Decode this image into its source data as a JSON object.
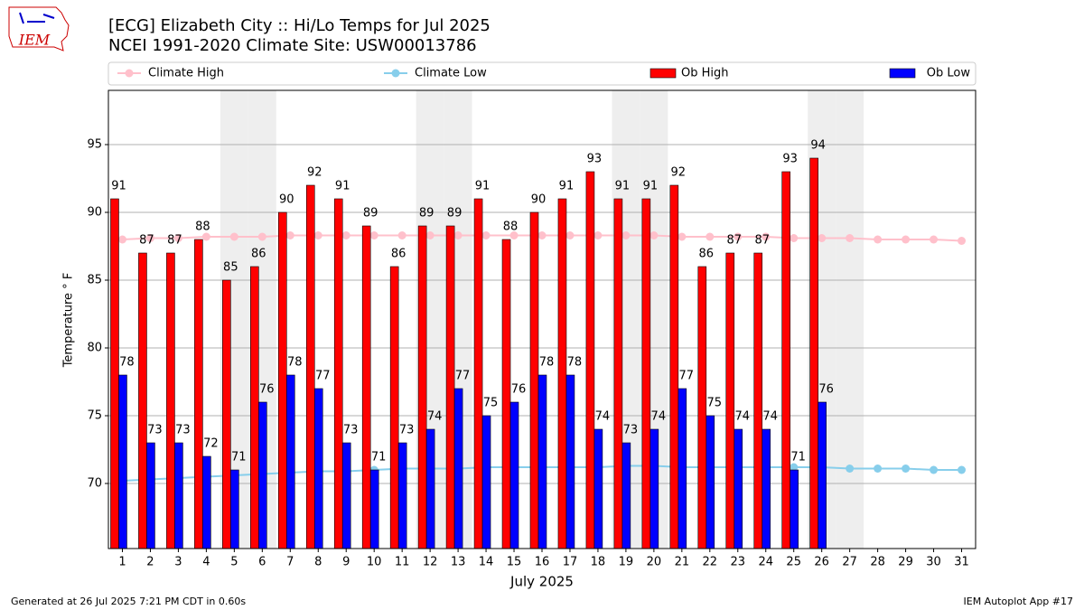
{
  "chart_data": {
    "type": "bar",
    "title": "[ECG] Elizabeth City :: Hi/Lo Temps for Jul 2025",
    "subtitle": "NCEI 1991-2020 Climate Site: USW00013786",
    "x_label": "July 2025",
    "y_label": "Temperature ° F",
    "footer_left": "Generated at 26 Jul 2025 7:21 PM CDT in 0.60s",
    "footer_right": "IEM Autoplot App #17",
    "logo_text": "IEM",
    "categories": [
      "1",
      "2",
      "3",
      "4",
      "5",
      "6",
      "7",
      "8",
      "9",
      "10",
      "11",
      "12",
      "13",
      "14",
      "15",
      "16",
      "17",
      "18",
      "19",
      "20",
      "21",
      "22",
      "23",
      "24",
      "25",
      "26",
      "27",
      "28",
      "29",
      "30",
      "31"
    ],
    "highlight": [
      "5",
      "6",
      "12",
      "13",
      "19",
      "20",
      "26",
      "27"
    ],
    "series": [
      {
        "name": "Climate High",
        "type": "line",
        "color": "#ffc0cb",
        "values": [
          88.0,
          88.1,
          88.1,
          88.2,
          88.2,
          88.2,
          88.3,
          88.3,
          88.3,
          88.3,
          88.3,
          88.3,
          88.3,
          88.3,
          88.3,
          88.3,
          88.3,
          88.3,
          88.3,
          88.3,
          88.2,
          88.2,
          88.2,
          88.2,
          88.1,
          88.1,
          88.1,
          88.0,
          88.0,
          88.0,
          87.9
        ]
      },
      {
        "name": "Climate Low",
        "type": "line",
        "color": "#87ceeb",
        "values": [
          70.2,
          70.3,
          70.4,
          70.5,
          70.6,
          70.7,
          70.8,
          70.9,
          70.9,
          71.0,
          71.1,
          71.1,
          71.1,
          71.2,
          71.2,
          71.2,
          71.2,
          71.2,
          71.3,
          71.3,
          71.2,
          71.2,
          71.2,
          71.2,
          71.2,
          71.2,
          71.1,
          71.1,
          71.1,
          71.0,
          71.0
        ]
      },
      {
        "name": "Ob High",
        "type": "bar",
        "color": "#ff0000",
        "values": [
          91,
          87,
          87,
          88,
          85,
          86,
          90,
          92,
          91,
          89,
          86,
          89,
          89,
          91,
          88,
          90,
          91,
          93,
          91,
          91,
          92,
          86,
          87,
          87,
          93,
          94,
          null,
          null,
          null,
          null,
          null
        ]
      },
      {
        "name": "Ob Low",
        "type": "bar",
        "color": "#0000ff",
        "values": [
          78,
          73,
          73,
          72,
          71,
          76,
          78,
          77,
          73,
          71,
          73,
          74,
          77,
          75,
          76,
          78,
          78,
          74,
          73,
          74,
          77,
          75,
          74,
          74,
          71,
          76,
          null,
          null,
          null,
          null,
          null
        ]
      }
    ],
    "ylim": [
      65.2,
      99
    ],
    "yticks": [
      70,
      75,
      80,
      85,
      90,
      95
    ],
    "grid": true
  }
}
